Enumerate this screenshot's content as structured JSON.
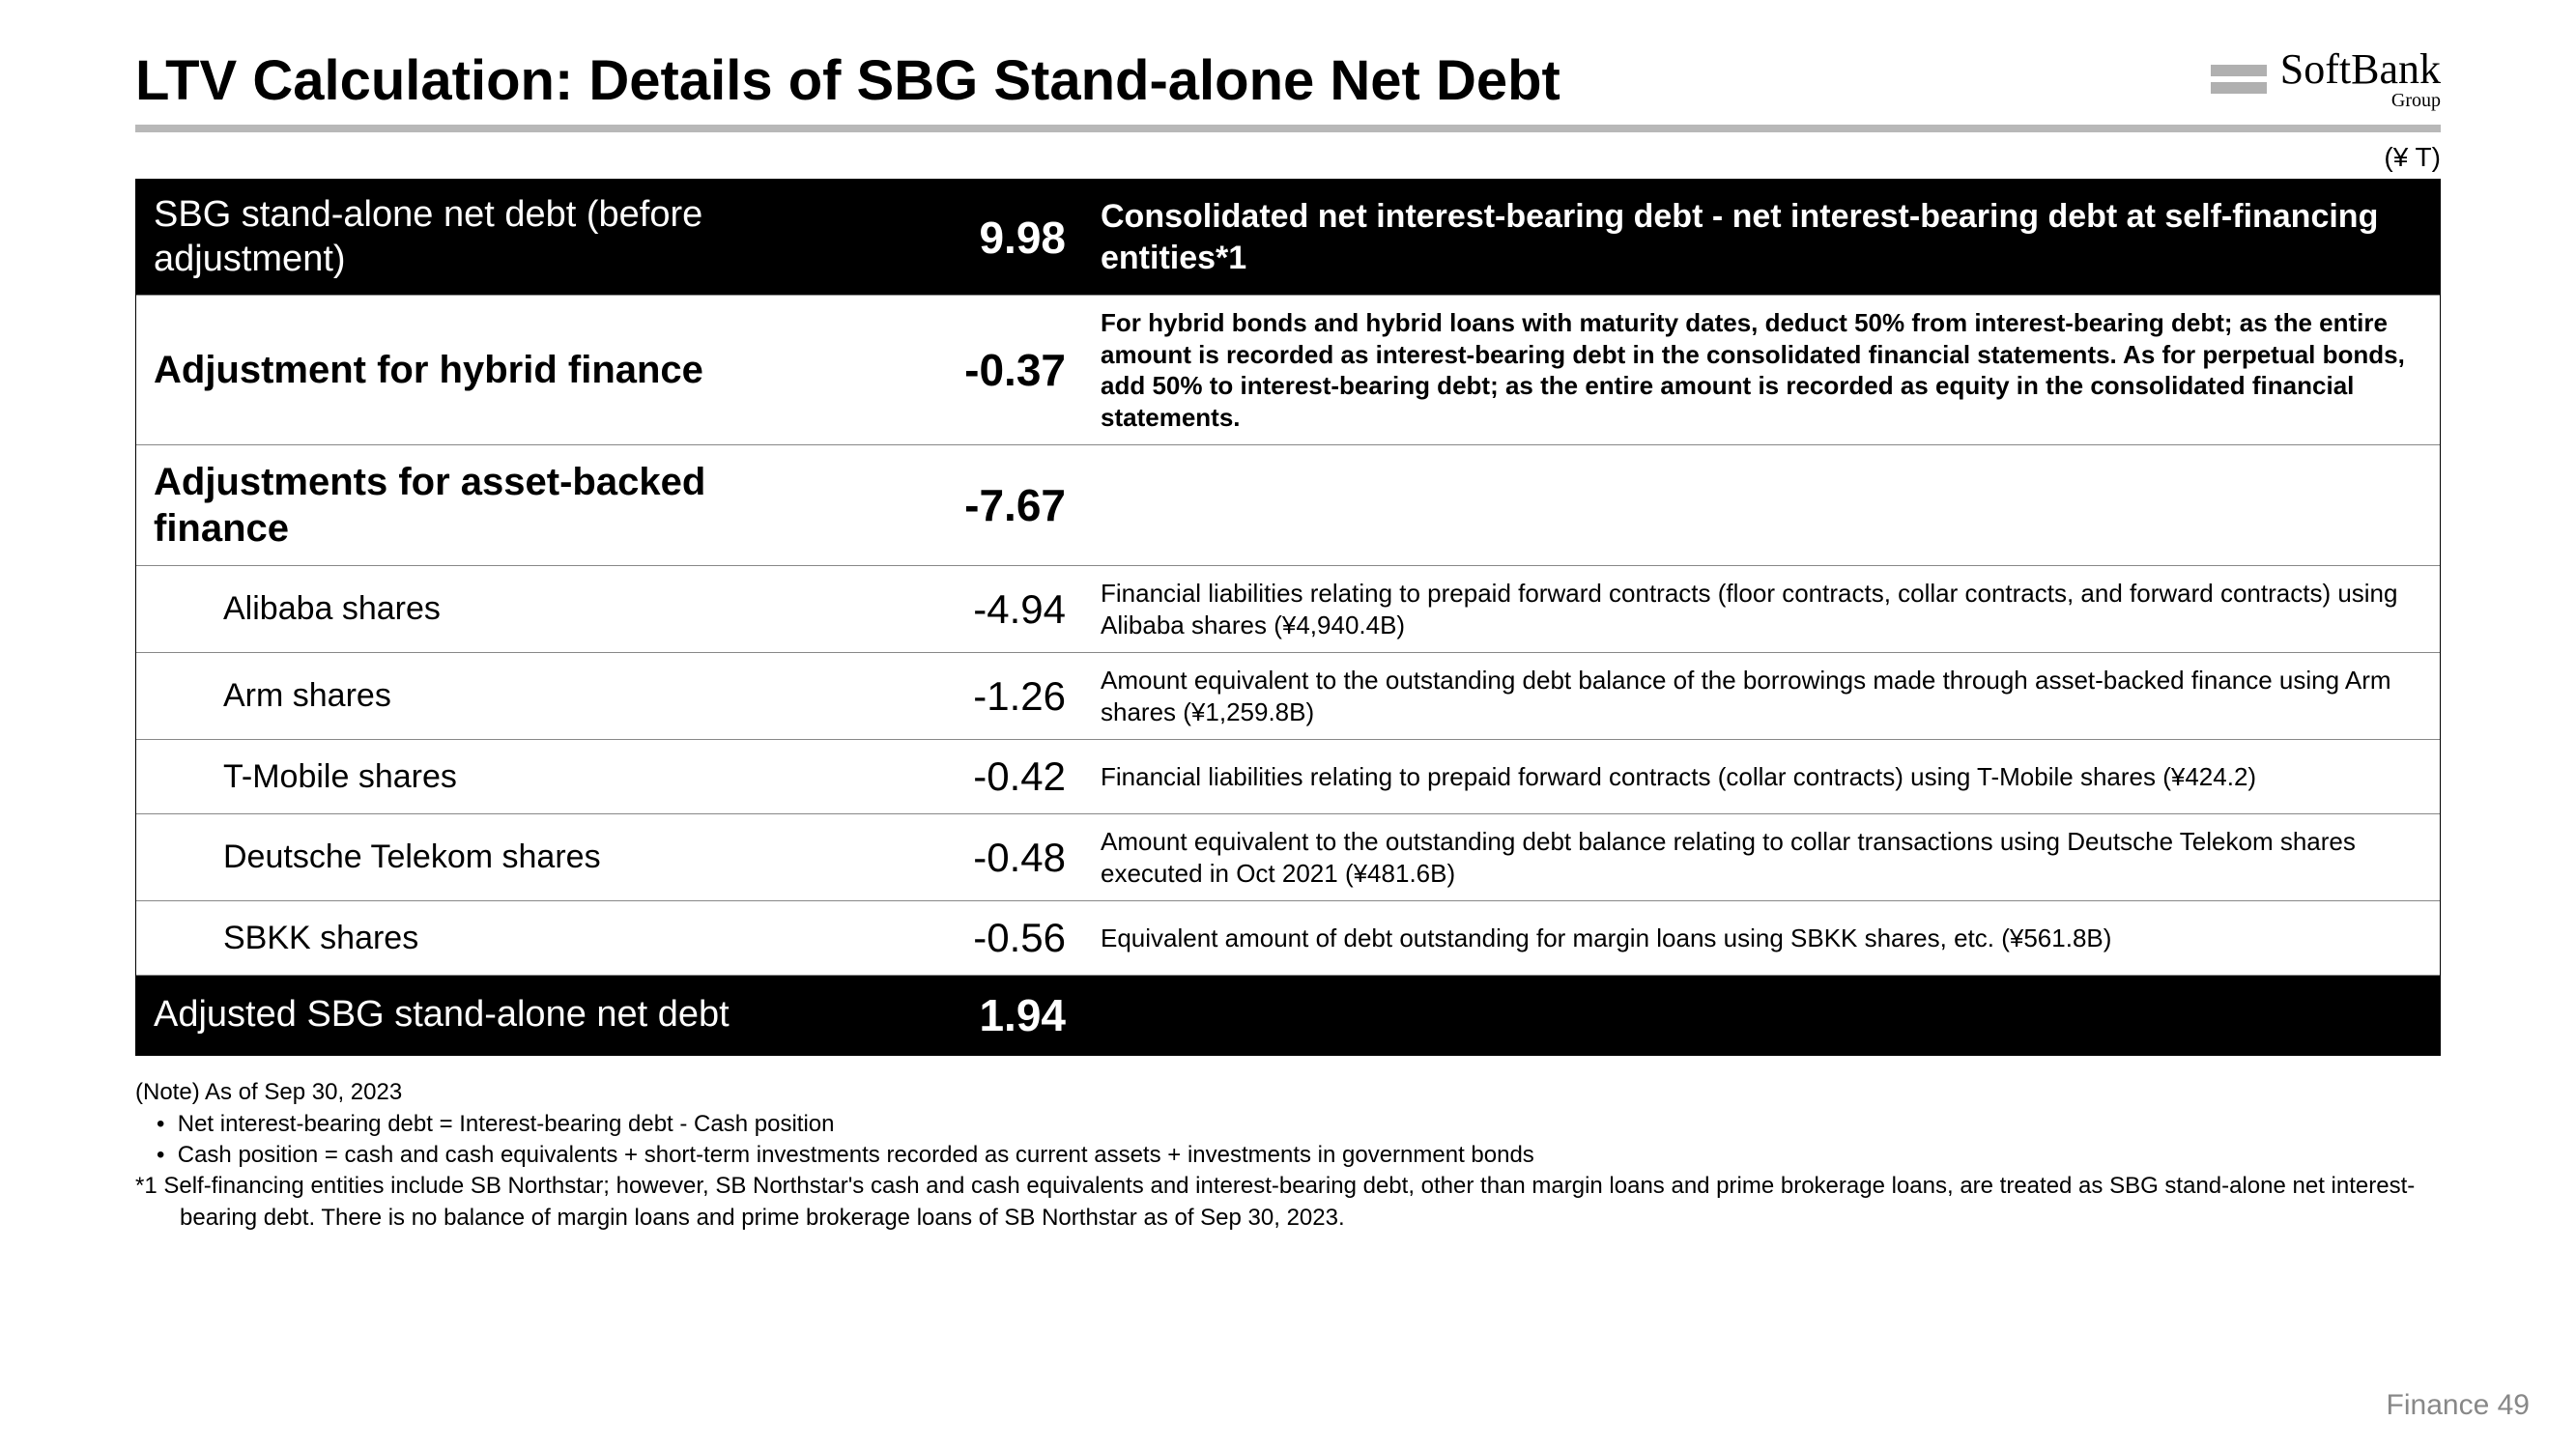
{
  "title": "LTV Calculation: Details of SBG Stand-alone Net Debt",
  "logo": {
    "main": "SoftBank",
    "sub": "Group"
  },
  "unit": "(¥ T)",
  "table": {
    "rows": [
      {
        "type": "black",
        "label": "SBG stand-alone net debt (before adjustment)",
        "value": "9.98",
        "desc": "Consolidated net interest-bearing debt - net interest-bearing debt at self-financing entities*1"
      },
      {
        "type": "major",
        "label": "Adjustment for hybrid finance",
        "value": "-0.37",
        "desc": "For hybrid bonds and hybrid loans with maturity dates, deduct 50% from interest-bearing debt; as the entire amount is recorded as interest-bearing debt in the consolidated financial statements. As for perpetual bonds, add 50% to interest-bearing debt; as the entire amount is recorded as equity in the consolidated financial statements."
      },
      {
        "type": "major",
        "label": "Adjustments for asset-backed finance",
        "value": "-7.67",
        "desc": ""
      },
      {
        "type": "sub",
        "label": "Alibaba shares",
        "value": "-4.94",
        "desc": "Financial liabilities relating to prepaid forward contracts (floor contracts, collar contracts, and forward contracts) using Alibaba shares (¥4,940.4B)"
      },
      {
        "type": "sub",
        "label": "Arm shares",
        "value": "-1.26",
        "desc": "Amount equivalent to the outstanding debt balance of the borrowings made through asset-backed finance using Arm shares (¥1,259.8B)"
      },
      {
        "type": "sub",
        "label": "T-Mobile shares",
        "value": "-0.42",
        "desc": "Financial liabilities relating to prepaid forward contracts (collar contracts) using T-Mobile shares (¥424.2)"
      },
      {
        "type": "sub",
        "label": "Deutsche Telekom shares",
        "value": "-0.48",
        "desc": "Amount equivalent to the outstanding debt balance relating to collar transactions using Deutsche Telekom shares executed in Oct 2021 (¥481.6B)"
      },
      {
        "type": "sub",
        "label": "SBKK shares",
        "value": "-0.56",
        "desc": "Equivalent amount of debt outstanding for margin loans using SBKK shares, etc. (¥561.8B)"
      },
      {
        "type": "black",
        "label": "Adjusted SBG stand-alone net debt",
        "value": "1.94",
        "desc": ""
      }
    ]
  },
  "notes": {
    "header": "(Note) As of Sep 30, 2023",
    "bullets": [
      "Net interest-bearing debt = Interest-bearing debt - Cash position",
      "Cash position = cash and cash equivalents + short-term investments recorded as current assets + investments in government bonds"
    ],
    "ref": "*1 Self-financing entities include SB Northstar; however, SB Northstar's cash and cash equivalents and interest-bearing debt, other than margin loans and prime brokerage loans, are treated as SBG stand-alone net interest-bearing debt. There is no balance of margin loans and prime brokerage loans of SB Northstar as of Sep 30, 2023."
  },
  "footer": {
    "label": "Finance",
    "page": "49"
  }
}
